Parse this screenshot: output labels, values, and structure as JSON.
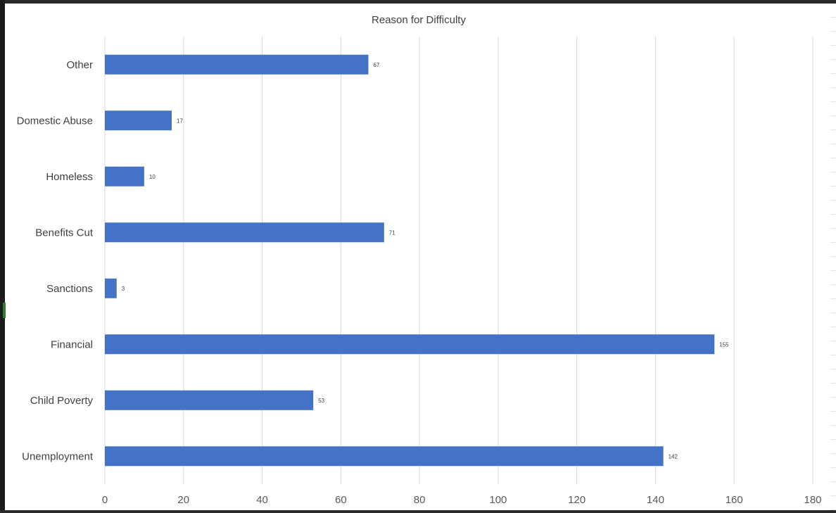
{
  "chart_data": {
    "type": "bar",
    "orientation": "horizontal",
    "title": "Reason for Difficulty",
    "categories": [
      "Unemployment",
      "Child Poverty",
      "Financial",
      "Sanctions",
      "Benefits Cut",
      "Homeless",
      "Domestic Abuse",
      "Other"
    ],
    "values": [
      142,
      53,
      155,
      3,
      71,
      10,
      17,
      67
    ],
    "xlim": [
      0,
      180
    ],
    "xticks": [
      0,
      20,
      40,
      60,
      80,
      100,
      120,
      140,
      160,
      180
    ],
    "grid": true,
    "legend": "none",
    "data_labels": true,
    "bar_color": "#4472C4",
    "grid_color": "#d9d9d9"
  }
}
